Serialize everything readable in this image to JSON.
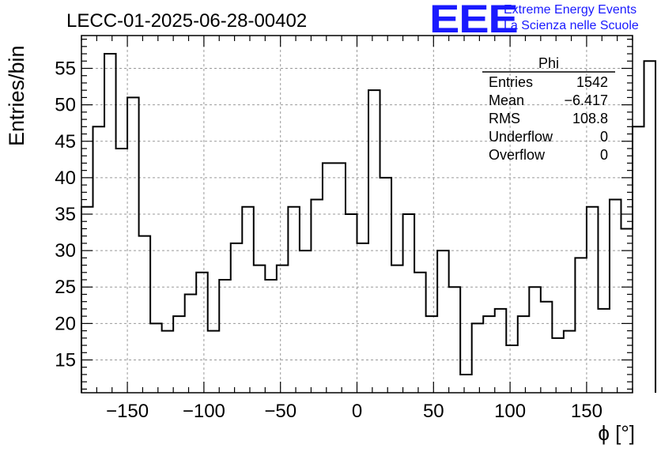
{
  "header": {
    "run_title": "LECC-01-2025-06-28-00402",
    "logo_text": "EEE",
    "project_line1": "Extreme Energy Events",
    "project_line2": "La Scienza nelle Scuole"
  },
  "stats_box": {
    "name": "Phi",
    "rows": [
      {
        "label": "Entries",
        "value": "1542"
      },
      {
        "label": "Mean",
        "value": "−6.417"
      },
      {
        "label": "RMS",
        "value": "108.8"
      },
      {
        "label": "Underflow",
        "value": "0"
      },
      {
        "label": "Overflow",
        "value": "0"
      }
    ]
  },
  "chart_data": {
    "type": "histogram",
    "title": "LECC-01-2025-06-28-00402",
    "xlabel": "ϕ [°]",
    "ylabel": "Entries/bin",
    "xlim": [
      -180,
      180
    ],
    "ylim": [
      10.5,
      59.5
    ],
    "bin_width": 7.5,
    "bin_edges_start": -180,
    "values": [
      36,
      47,
      57,
      44,
      51,
      32,
      20,
      19,
      21,
      24,
      27,
      19,
      26,
      31,
      36,
      28,
      26,
      28,
      36,
      30,
      37,
      42,
      42,
      35,
      31,
      52,
      40,
      28,
      35,
      27,
      21,
      30,
      25,
      13,
      20,
      21,
      22,
      17,
      21,
      25,
      23,
      18,
      19,
      29,
      36,
      22,
      37,
      33,
      47,
      56
    ],
    "x_ticks": [
      -150,
      -100,
      -50,
      0,
      50,
      100,
      150
    ],
    "x_tick_labels": [
      "−150",
      "−100",
      "−50",
      "0",
      "50",
      "100",
      "150"
    ],
    "y_ticks": [
      15,
      20,
      25,
      30,
      35,
      40,
      45,
      50,
      55
    ],
    "y_tick_labels": [
      "15",
      "20",
      "25",
      "30",
      "35",
      "40",
      "45",
      "50",
      "55"
    ],
    "grid": true,
    "legend": "top-right",
    "colors": {
      "line": "#000000",
      "grid": "#999999",
      "logo": "#1a1aff"
    }
  }
}
